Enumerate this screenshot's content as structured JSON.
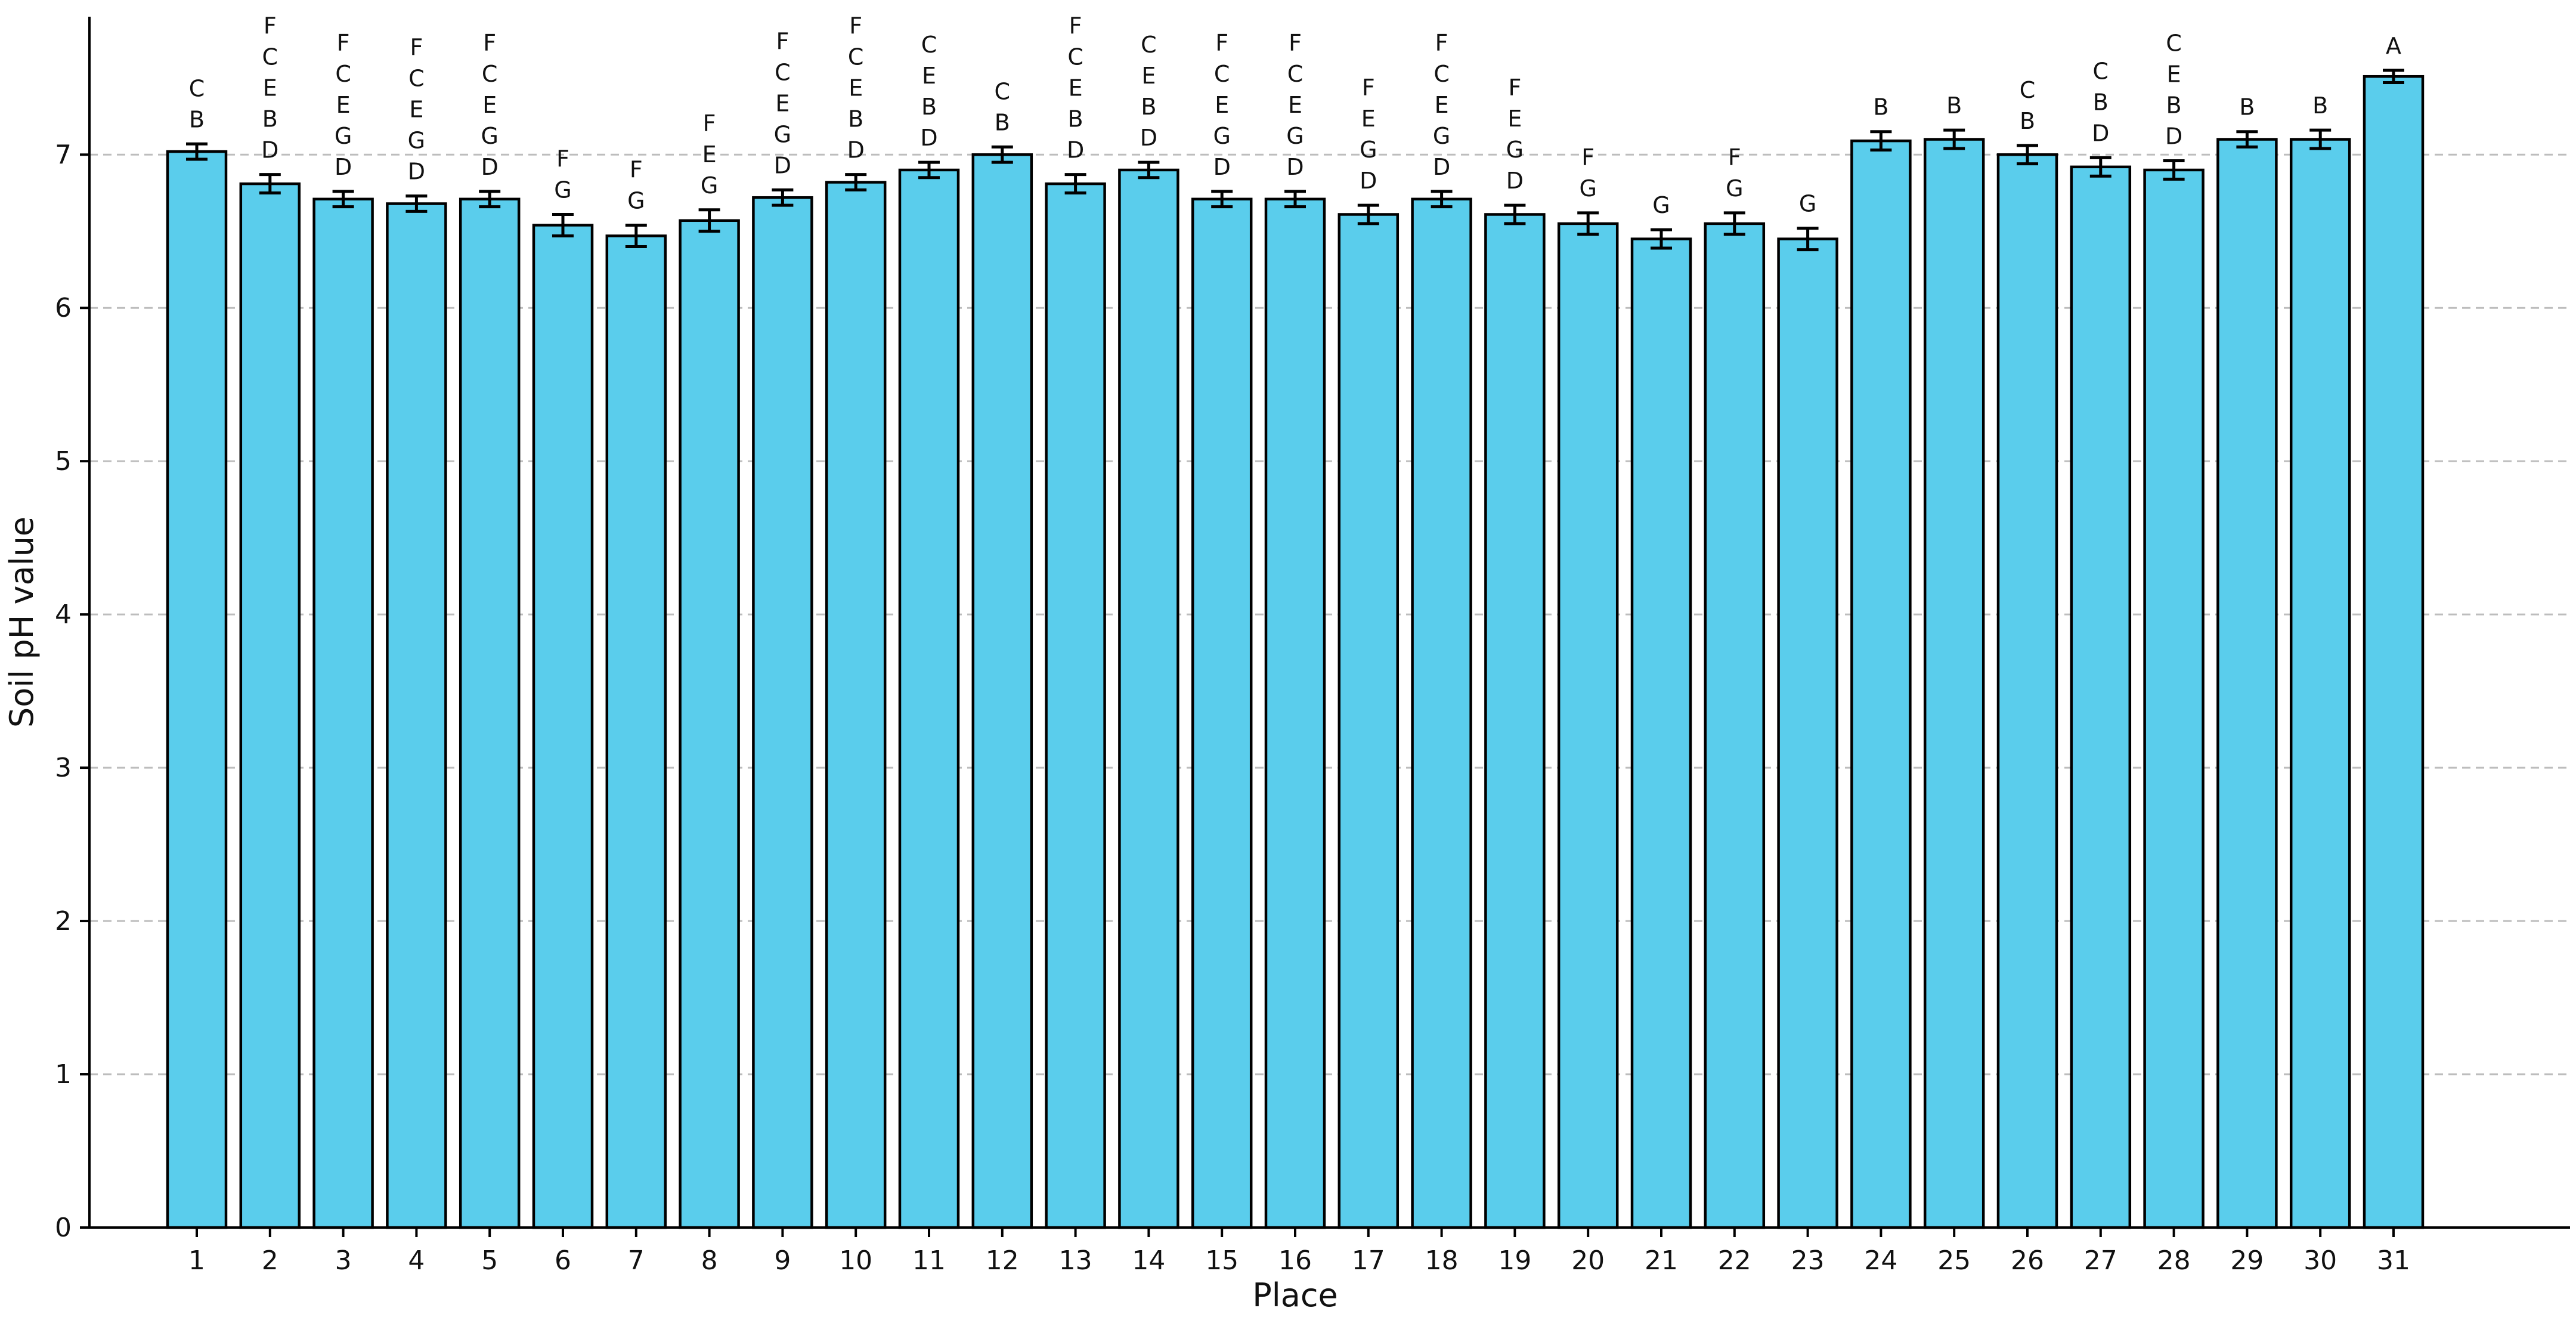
{
  "chart_data": {
    "type": "bar",
    "title": "",
    "xlabel": "Place",
    "ylabel": "Soil pH value",
    "ylim": [
      0,
      7.9
    ],
    "yticks": [
      0,
      1,
      2,
      3,
      4,
      5,
      6,
      7
    ],
    "grid": "horizontal dashed at y ticks",
    "legend": "none",
    "bar_color": "#5ACDEC",
    "edge_color": "#000000",
    "categories": [
      "1",
      "2",
      "3",
      "4",
      "5",
      "6",
      "7",
      "8",
      "9",
      "10",
      "11",
      "12",
      "13",
      "14",
      "15",
      "16",
      "17",
      "18",
      "19",
      "20",
      "21",
      "22",
      "23",
      "24",
      "25",
      "26",
      "27",
      "28",
      "29",
      "30",
      "31"
    ],
    "values": [
      7.02,
      6.81,
      6.71,
      6.68,
      6.71,
      6.54,
      6.47,
      6.57,
      6.72,
      6.82,
      6.9,
      7.0,
      6.81,
      6.9,
      6.71,
      6.71,
      6.61,
      6.71,
      6.61,
      6.55,
      6.45,
      6.55,
      6.45,
      7.09,
      7.1,
      7.0,
      6.92,
      6.9,
      7.1,
      7.1,
      7.51
    ],
    "errors": [
      0.05,
      0.06,
      0.05,
      0.05,
      0.05,
      0.07,
      0.07,
      0.07,
      0.05,
      0.05,
      0.05,
      0.05,
      0.06,
      0.05,
      0.05,
      0.05,
      0.06,
      0.05,
      0.06,
      0.07,
      0.06,
      0.07,
      0.07,
      0.06,
      0.06,
      0.06,
      0.06,
      0.06,
      0.05,
      0.06,
      0.04
    ],
    "significance_labels": [
      [
        "C",
        "B"
      ],
      [
        "F",
        "C",
        "E",
        "B",
        "D"
      ],
      [
        "F",
        "C",
        "E",
        "G",
        "D"
      ],
      [
        "F",
        "C",
        "E",
        "G",
        "D"
      ],
      [
        "F",
        "C",
        "E",
        "G",
        "D"
      ],
      [
        "F",
        "G"
      ],
      [
        "F",
        "G"
      ],
      [
        "F",
        "E",
        "G"
      ],
      [
        "F",
        "C",
        "E",
        "G",
        "D"
      ],
      [
        "F",
        "C",
        "E",
        "B",
        "D"
      ],
      [
        "C",
        "E",
        "B",
        "D"
      ],
      [
        "C",
        "B"
      ],
      [
        "F",
        "C",
        "E",
        "B",
        "D"
      ],
      [
        "C",
        "E",
        "B",
        "D"
      ],
      [
        "F",
        "C",
        "E",
        "G",
        "D"
      ],
      [
        "F",
        "C",
        "E",
        "G",
        "D"
      ],
      [
        "F",
        "E",
        "G",
        "D"
      ],
      [
        "F",
        "C",
        "E",
        "G",
        "D"
      ],
      [
        "F",
        "E",
        "G",
        "D"
      ],
      [
        "F",
        "G"
      ],
      [
        "G"
      ],
      [
        "F",
        "G"
      ],
      [
        "G"
      ],
      [
        "B"
      ],
      [
        "B"
      ],
      [
        "C",
        "B"
      ],
      [
        "C",
        "B",
        "D"
      ],
      [
        "C",
        "E",
        "B",
        "D"
      ],
      [
        "B"
      ],
      [
        "B"
      ],
      [
        "A"
      ]
    ]
  }
}
